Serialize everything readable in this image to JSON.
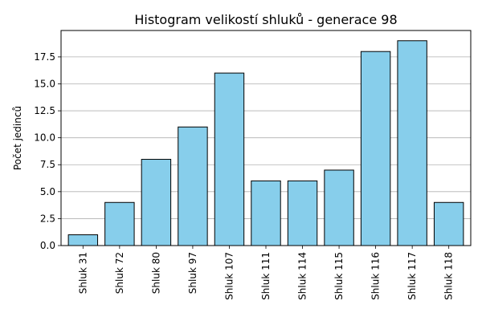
{
  "chart_data": {
    "type": "bar",
    "title": "Histogram velikostí shluků - generace 98",
    "xlabel": "",
    "ylabel": "Počet jedinců",
    "categories": [
      "Shluk 31",
      "Shluk 72",
      "Shluk 80",
      "Shluk 97",
      "Shluk 107",
      "Shluk 111",
      "Shluk 114",
      "Shluk 115",
      "Shluk 116",
      "Shluk 117",
      "Shluk 118"
    ],
    "values": [
      1,
      4,
      8,
      11,
      16,
      6,
      6,
      7,
      18,
      19,
      4
    ],
    "ylim": [
      0,
      19.95
    ],
    "yticks": [
      "0.0",
      "2.5",
      "5.0",
      "7.5",
      "10.0",
      "12.5",
      "15.0",
      "17.5"
    ],
    "grid": "y",
    "bar_color": "#87ceeb",
    "edge_color": "#000000"
  }
}
